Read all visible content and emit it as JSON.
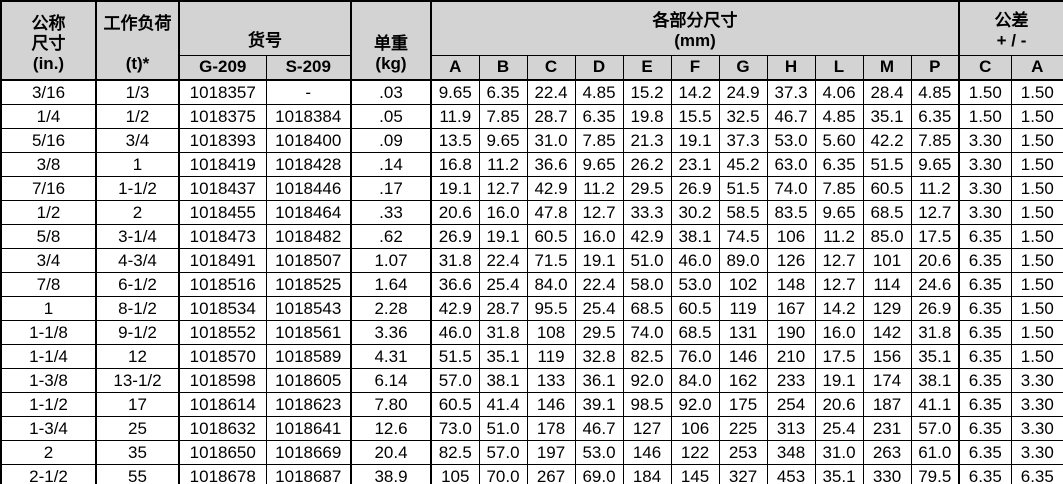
{
  "table": {
    "header": {
      "nominal_size": "公称\n尺寸\n(in.)",
      "working_load": "工作负荷\n\n(t)*",
      "item_number": "货号",
      "item_cols": [
        "G-209",
        "S-209"
      ],
      "unit_weight": "单重\n(kg)",
      "dimensions": "各部分尺寸\n(mm)",
      "dimension_cols": [
        "A",
        "B",
        "C",
        "D",
        "E",
        "F",
        "G",
        "H",
        "L",
        "M",
        "P"
      ],
      "tolerance": "公差\n+ / -",
      "tolerance_cols": [
        "C",
        "A"
      ]
    },
    "rows": [
      [
        "3/16",
        "1/3",
        "1018357",
        "-",
        ".03",
        "9.65",
        "6.35",
        "22.4",
        "4.85",
        "15.2",
        "14.2",
        "24.9",
        "37.3",
        "4.06",
        "28.4",
        "4.85",
        "1.50",
        "1.50"
      ],
      [
        "1/4",
        "1/2",
        "1018375",
        "1018384",
        ".05",
        "11.9",
        "7.85",
        "28.7",
        "6.35",
        "19.8",
        "15.5",
        "32.5",
        "46.7",
        "4.85",
        "35.1",
        "6.35",
        "1.50",
        "1.50"
      ],
      [
        "5/16",
        "3/4",
        "1018393",
        "1018400",
        ".09",
        "13.5",
        "9.65",
        "31.0",
        "7.85",
        "21.3",
        "19.1",
        "37.3",
        "53.0",
        "5.60",
        "42.2",
        "7.85",
        "3.30",
        "1.50"
      ],
      [
        "3/8",
        "1",
        "1018419",
        "1018428",
        ".14",
        "16.8",
        "11.2",
        "36.6",
        "9.65",
        "26.2",
        "23.1",
        "45.2",
        "63.0",
        "6.35",
        "51.5",
        "9.65",
        "3.30",
        "1.50"
      ],
      [
        "7/16",
        "1-1/2",
        "1018437",
        "1018446",
        ".17",
        "19.1",
        "12.7",
        "42.9",
        "11.2",
        "29.5",
        "26.9",
        "51.5",
        "74.0",
        "7.85",
        "60.5",
        "11.2",
        "3.30",
        "1.50"
      ],
      [
        "1/2",
        "2",
        "1018455",
        "1018464",
        ".33",
        "20.6",
        "16.0",
        "47.8",
        "12.7",
        "33.3",
        "30.2",
        "58.5",
        "83.5",
        "9.65",
        "68.5",
        "12.7",
        "3.30",
        "1.50"
      ],
      [
        "5/8",
        "3-1/4",
        "1018473",
        "1018482",
        ".62",
        "26.9",
        "19.1",
        "60.5",
        "16.0",
        "42.9",
        "38.1",
        "74.5",
        "106",
        "11.2",
        "85.0",
        "17.5",
        "6.35",
        "1.50"
      ],
      [
        "3/4",
        "4-3/4",
        "1018491",
        "1018507",
        "1.07",
        "31.8",
        "22.4",
        "71.5",
        "19.1",
        "51.0",
        "46.0",
        "89.0",
        "126",
        "12.7",
        "101",
        "20.6",
        "6.35",
        "1.50"
      ],
      [
        "7/8",
        "6-1/2",
        "1018516",
        "1018525",
        "1.64",
        "36.6",
        "25.4",
        "84.0",
        "22.4",
        "58.0",
        "53.0",
        "102",
        "148",
        "12.7",
        "114",
        "24.6",
        "6.35",
        "1.50"
      ],
      [
        "1",
        "8-1/2",
        "1018534",
        "1018543",
        "2.28",
        "42.9",
        "28.7",
        "95.5",
        "25.4",
        "68.5",
        "60.5",
        "119",
        "167",
        "14.2",
        "129",
        "26.9",
        "6.35",
        "1.50"
      ],
      [
        "1-1/8",
        "9-1/2",
        "1018552",
        "1018561",
        "3.36",
        "46.0",
        "31.8",
        "108",
        "29.5",
        "74.0",
        "68.5",
        "131",
        "190",
        "16.0",
        "142",
        "31.8",
        "6.35",
        "1.50"
      ],
      [
        "1-1/4",
        "12",
        "1018570",
        "1018589",
        "4.31",
        "51.5",
        "35.1",
        "119",
        "32.8",
        "82.5",
        "76.0",
        "146",
        "210",
        "17.5",
        "156",
        "35.1",
        "6.35",
        "1.50"
      ],
      [
        "1-3/8",
        "13-1/2",
        "1018598",
        "1018605",
        "6.14",
        "57.0",
        "38.1",
        "133",
        "36.1",
        "92.0",
        "84.0",
        "162",
        "233",
        "19.1",
        "174",
        "38.1",
        "6.35",
        "3.30"
      ],
      [
        "1-1/2",
        "17",
        "1018614",
        "1018623",
        "7.80",
        "60.5",
        "41.4",
        "146",
        "39.1",
        "98.5",
        "92.0",
        "175",
        "254",
        "20.6",
        "187",
        "41.1",
        "6.35",
        "3.30"
      ],
      [
        "1-3/4",
        "25",
        "1018632",
        "1018641",
        "12.6",
        "73.0",
        "51.0",
        "178",
        "46.7",
        "127",
        "106",
        "225",
        "313",
        "25.4",
        "231",
        "57.0",
        "6.35",
        "3.30"
      ],
      [
        "2",
        "35",
        "1018650",
        "1018669",
        "20.4",
        "82.5",
        "57.0",
        "197",
        "53.0",
        "146",
        "122",
        "253",
        "348",
        "31.0",
        "263",
        "61.0",
        "6.35",
        "3.30"
      ],
      [
        "2-1/2",
        "55",
        "1018678",
        "1018687",
        "38.9",
        "105",
        "70.0",
        "267",
        "69.0",
        "184",
        "145",
        "327",
        "453",
        "35.1",
        "330",
        "79.5",
        "6.35",
        "6.35"
      ]
    ],
    "colors": {
      "header_bg": "#d3d3d3",
      "border": "#000000",
      "cell_bg": "#ffffff"
    }
  }
}
